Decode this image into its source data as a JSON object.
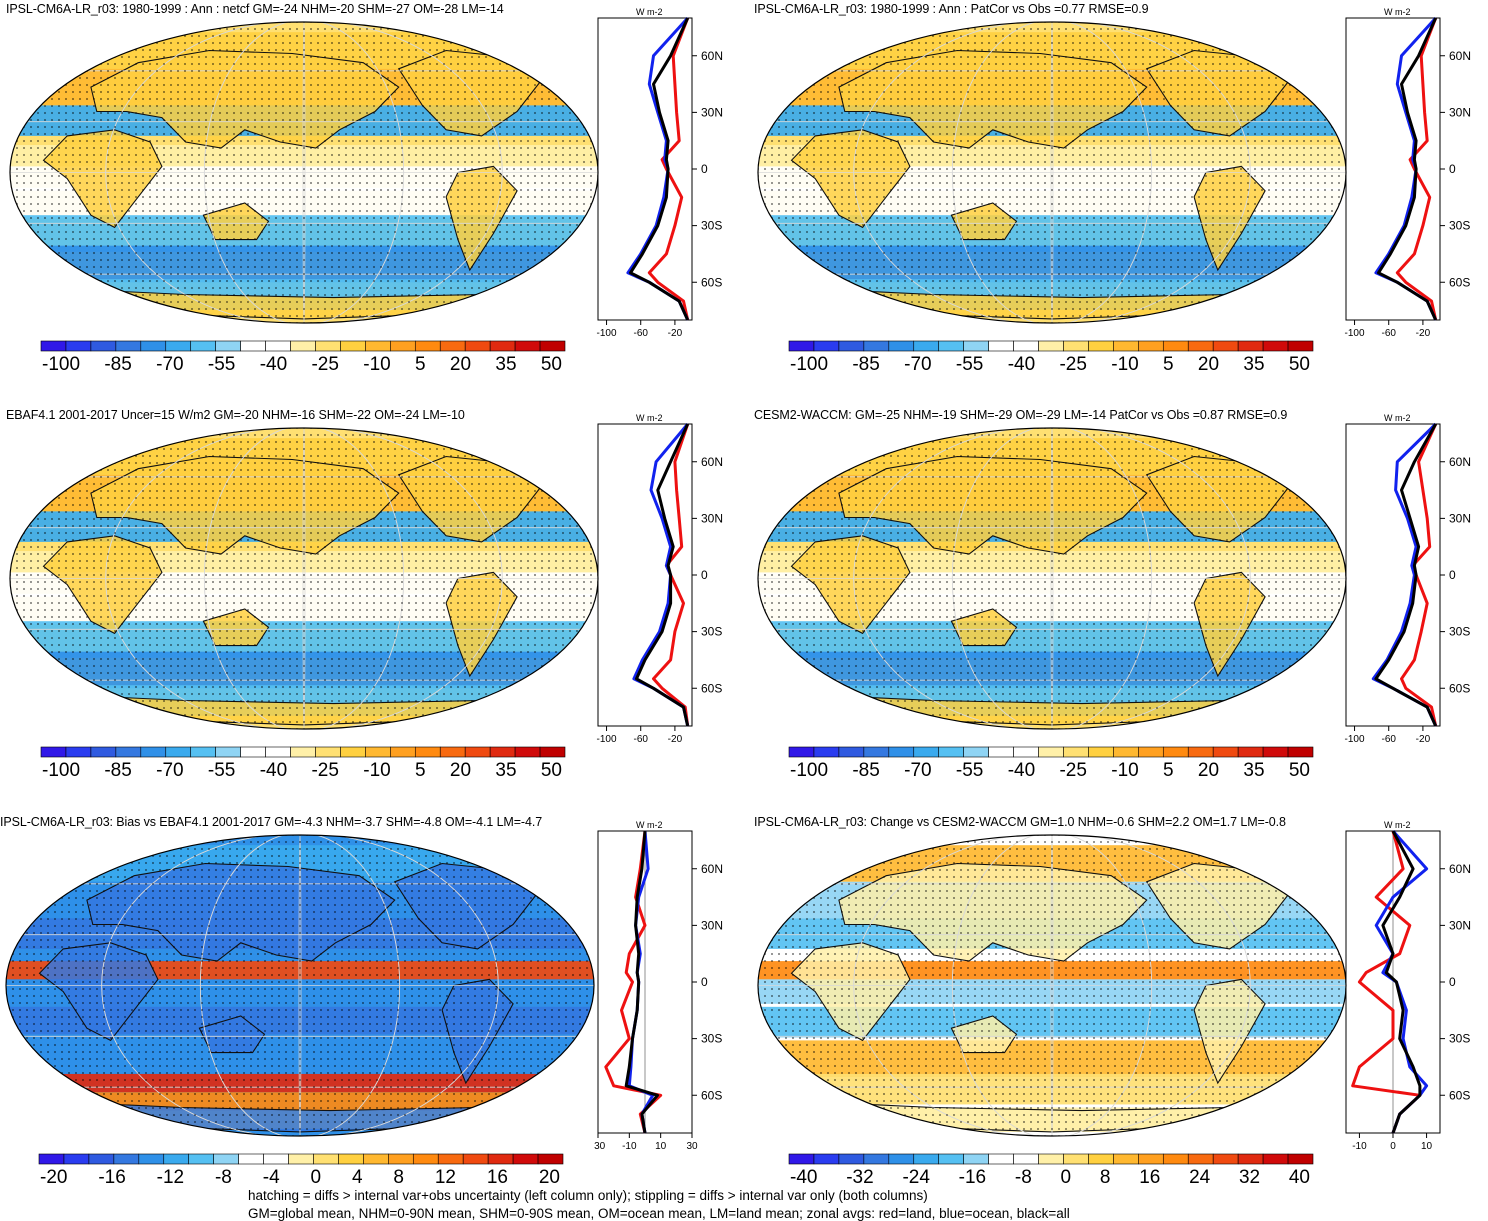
{
  "panels": [
    {
      "title": "IPSL-CM6A-LR_r03: 1980-1999 : Ann : netcf GM=-24 NHM=-20 SHM=-27 OM=-28 LM=-14",
      "colorbar": {
        "ticks": [
          "-100",
          "-85",
          "-70",
          "-55",
          "-40",
          "-25",
          "-10",
          "5",
          "20",
          "35",
          "50"
        ],
        "scheme": "main"
      },
      "zonal": {
        "unit": "W m-2",
        "xticks": [
          "-100",
          "-60",
          "-20"
        ],
        "lat_labels": [
          "60N",
          "30N",
          "0",
          "30S",
          "60S"
        ],
        "kind": "main"
      }
    },
    {
      "title": "IPSL-CM6A-LR_r03: 1980-1999 : Ann : PatCor vs Obs =0.77 RMSE=0.9",
      "colorbar": {
        "ticks": [
          "-100",
          "-85",
          "-70",
          "-55",
          "-40",
          "-25",
          "-10",
          "5",
          "20",
          "35",
          "50"
        ],
        "scheme": "main"
      },
      "zonal": {
        "unit": "W m-2",
        "xticks": [
          "-100",
          "-60",
          "-20"
        ],
        "lat_labels": [
          "60N",
          "30N",
          "0",
          "30S",
          "60S"
        ],
        "kind": "main"
      }
    },
    {
      "title": "EBAF4.1 2001-2017 Uncer=15 W/m2 GM=-20 NHM=-16 SHM=-22 OM=-24 LM=-10",
      "colorbar": {
        "ticks": [
          "-100",
          "-85",
          "-70",
          "-55",
          "-40",
          "-25",
          "-10",
          "5",
          "20",
          "35",
          "50"
        ],
        "scheme": "main"
      },
      "zonal": {
        "unit": "W m-2",
        "xticks": [
          "-100",
          "-60",
          "-20"
        ],
        "lat_labels": [
          "60N",
          "30N",
          "0",
          "30S",
          "60S"
        ],
        "kind": "main"
      }
    },
    {
      "title": "CESM2-WACCM: GM=-25 NHM=-19 SHM=-29 OM=-29 LM=-14 PatCor vs Obs =0.87 RMSE=0.9",
      "colorbar": {
        "ticks": [
          "-100",
          "-85",
          "-70",
          "-55",
          "-40",
          "-25",
          "-10",
          "5",
          "20",
          "35",
          "50"
        ],
        "scheme": "main"
      },
      "zonal": {
        "unit": "W m-2",
        "xticks": [
          "-100",
          "-60",
          "-20"
        ],
        "lat_labels": [
          "60N",
          "30N",
          "0",
          "30S",
          "60S"
        ],
        "kind": "main"
      }
    },
    {
      "title": "IPSL-CM6A-LR_r03: Bias vs EBAF4.1 2001-2017 GM=-4.3 NHM=-3.7 SHM=-4.8 OM=-4.1 LM=-4.7",
      "colorbar": {
        "ticks": [
          "-20",
          "-16",
          "-12",
          "-8",
          "-4",
          "0",
          "4",
          "8",
          "12",
          "16",
          "20"
        ],
        "scheme": "bias"
      },
      "zonal": {
        "unit": "W m-2",
        "xticks": [
          "-30",
          "-10",
          "10",
          "30"
        ],
        "lat_labels": [
          "60N",
          "30N",
          "0",
          "30S",
          "60S"
        ],
        "kind": "bias"
      }
    },
    {
      "title": "IPSL-CM6A-LR_r03: Change vs CESM2-WACCM GM=1.0 NHM=-0.6 SHM=2.2 OM=1.7 LM=-0.8",
      "colorbar": {
        "ticks": [
          "-40",
          "-32",
          "-24",
          "-16",
          "-8",
          "0",
          "8",
          "16",
          "24",
          "32",
          "40"
        ],
        "scheme": "change"
      },
      "zonal": {
        "unit": "W m-2",
        "xticks": [
          "-10",
          "0",
          "10"
        ],
        "lat_labels": [
          "60N",
          "30N",
          "0",
          "30S",
          "60S"
        ],
        "kind": "change"
      }
    }
  ],
  "footer": {
    "line1": "hatching = diffs > internal var+obs uncertainty (left column only); stippling = diffs > internal var only (both columns)",
    "line2": "GM=global mean, NHM=0-90N mean, SHM=0-90S mean, OM=ocean mean, LM=land mean; zonal avgs: red=land, blue=ocean, black=all"
  },
  "colors": {
    "land": "#ee1111",
    "ocean": "#1122ee",
    "all": "#000000"
  },
  "chart_data": [
    {
      "type": "heatmap",
      "title": "IPSL-CM6A-LR_r03: 1980-1999 : Ann : netcf",
      "colorbar_range": [
        -100,
        50
      ],
      "means": {
        "GM": -24,
        "NHM": -20,
        "SHM": -27,
        "OM": -28,
        "LM": -14
      },
      "zonal_avg": {
        "lat": [
          80,
          60,
          45,
          30,
          15,
          5,
          0,
          -15,
          -30,
          -45,
          -55,
          -60,
          -70,
          -80
        ],
        "all": [
          -5,
          -25,
          -45,
          -38,
          -28,
          -30,
          -28,
          -30,
          -40,
          -58,
          -72,
          -50,
          -15,
          -5
        ],
        "land": [
          -5,
          -22,
          -20,
          -18,
          -15,
          -35,
          -30,
          -12,
          -20,
          -30,
          -50,
          -40,
          -10,
          -5
        ],
        "ocean": [
          -5,
          -45,
          -50,
          -40,
          -30,
          -32,
          -28,
          -33,
          -42,
          -60,
          -75,
          -50,
          -15,
          -5
        ]
      }
    },
    {
      "type": "heatmap",
      "title": "IPSL-CM6A-LR_r03: 1980-1999 : Ann (PatCor)",
      "colorbar_range": [
        -100,
        50
      ],
      "stats": {
        "PatCor vs Obs": 0.77,
        "RMSE": 0.9
      },
      "zonal_avg": {
        "lat": [
          80,
          60,
          45,
          30,
          15,
          5,
          0,
          -15,
          -30,
          -45,
          -55,
          -60,
          -70,
          -80
        ],
        "all": [
          -5,
          -25,
          -45,
          -38,
          -28,
          -30,
          -28,
          -30,
          -40,
          -58,
          -72,
          -50,
          -15,
          -5
        ],
        "land": [
          -5,
          -22,
          -20,
          -18,
          -15,
          -35,
          -30,
          -12,
          -20,
          -30,
          -50,
          -40,
          -10,
          -5
        ],
        "ocean": [
          -5,
          -45,
          -50,
          -40,
          -30,
          -32,
          -28,
          -33,
          -42,
          -60,
          -75,
          -50,
          -15,
          -5
        ]
      }
    },
    {
      "type": "heatmap",
      "title": "EBAF4.1 2001-2017 netcf",
      "colorbar_range": [
        -100,
        50
      ],
      "means": {
        "Uncer": 15,
        "GM": -20,
        "NHM": -16,
        "SHM": -22,
        "OM": -24,
        "LM": -10
      },
      "zonal_avg": {
        "lat": [
          80,
          60,
          45,
          30,
          15,
          5,
          0,
          -15,
          -30,
          -45,
          -55,
          -60,
          -70,
          -80
        ],
        "all": [
          -5,
          -25,
          -40,
          -32,
          -22,
          -28,
          -25,
          -25,
          -35,
          -55,
          -65,
          -45,
          -10,
          -5
        ],
        "land": [
          -5,
          -20,
          -18,
          -15,
          -12,
          -30,
          -25,
          -10,
          -20,
          -25,
          -45,
          -35,
          -8,
          -5
        ],
        "ocean": [
          -5,
          -42,
          -48,
          -35,
          -25,
          -30,
          -25,
          -28,
          -38,
          -58,
          -68,
          -45,
          -10,
          -5
        ]
      }
    },
    {
      "type": "heatmap",
      "title": "CESM2-WACCM netcf",
      "colorbar_range": [
        -100,
        50
      ],
      "means": {
        "GM": -25,
        "NHM": -19,
        "SHM": -29,
        "OM": -29,
        "LM": -14
      },
      "stats": {
        "PatCor vs Obs": 0.87,
        "RMSE": 0.9
      },
      "zonal_avg": {
        "lat": [
          80,
          60,
          45,
          30,
          15,
          5,
          0,
          -15,
          -30,
          -45,
          -55,
          -60,
          -70,
          -80
        ],
        "all": [
          -5,
          -30,
          -45,
          -35,
          -25,
          -30,
          -28,
          -32,
          -42,
          -60,
          -75,
          -55,
          -15,
          -5
        ],
        "land": [
          -5,
          -25,
          -20,
          -15,
          -12,
          -32,
          -28,
          -15,
          -22,
          -30,
          -45,
          -40,
          -10,
          -5
        ],
        "ocean": [
          -5,
          -50,
          -52,
          -38,
          -28,
          -33,
          -30,
          -35,
          -45,
          -62,
          -78,
          -55,
          -15,
          -5
        ]
      }
    },
    {
      "type": "heatmap",
      "title": "IPSL-CM6A-LR_r03: Bias vs EBAF4.1 2001-2017",
      "colorbar_range": [
        -20,
        20
      ],
      "means": {
        "GM": -4.3,
        "NHM": -3.7,
        "SHM": -4.8,
        "OM": -4.1,
        "LM": -4.7
      },
      "zonal_avg": {
        "lat": [
          80,
          60,
          45,
          30,
          15,
          5,
          0,
          -15,
          -30,
          -45,
          -55,
          -60,
          -70,
          -80
        ],
        "all": [
          0,
          -2,
          -5,
          -6,
          -4,
          -5,
          -4,
          -5,
          -8,
          -10,
          -12,
          8,
          -2,
          0
        ],
        "land": [
          0,
          -3,
          -6,
          0,
          -10,
          -12,
          -8,
          -15,
          -10,
          -25,
          -20,
          10,
          -3,
          0
        ],
        "ocean": [
          0,
          2,
          -4,
          -6,
          -3,
          -5,
          -4,
          -5,
          -8,
          -9,
          -10,
          5,
          -2,
          0
        ]
      }
    },
    {
      "type": "heatmap",
      "title": "IPSL-CM6A-LR_r03: Change vs CESM2-WACCM",
      "colorbar_range": [
        -40,
        40
      ],
      "means": {
        "GM": 1.0,
        "NHM": -0.6,
        "SHM": 2.2,
        "OM": 1.7,
        "LM": -0.8
      },
      "zonal_avg": {
        "lat": [
          80,
          60,
          45,
          30,
          15,
          5,
          0,
          -15,
          -30,
          -45,
          -55,
          -60,
          -70,
          -80
        ],
        "all": [
          0,
          6,
          2,
          -3,
          0,
          -2,
          1,
          3,
          2,
          6,
          8,
          8,
          2,
          0
        ],
        "land": [
          0,
          3,
          -5,
          5,
          2,
          -8,
          -10,
          0,
          0,
          -10,
          -12,
          8,
          2,
          0
        ],
        "ocean": [
          0,
          10,
          0,
          -5,
          0,
          -3,
          1,
          4,
          3,
          5,
          10,
          8,
          2,
          0
        ]
      }
    }
  ]
}
